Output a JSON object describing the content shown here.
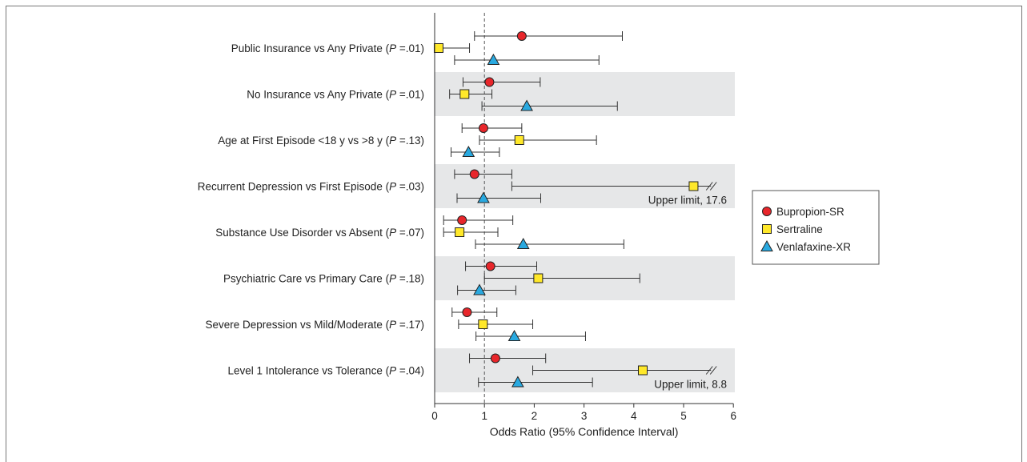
{
  "chart_data": {
    "type": "forest",
    "xlabel": "Odds Ratio (95% Confidence Interval)",
    "xlim": [
      0,
      6
    ],
    "xticks": [
      0,
      1,
      2,
      3,
      4,
      5,
      6
    ],
    "reference_line": 1,
    "legend": {
      "placement": "right",
      "entries": [
        {
          "name": "Bupropion-SR",
          "marker": "circle",
          "color": "#e8262b"
        },
        {
          "name": "Sertraline",
          "marker": "square",
          "color": "#ffe82a"
        },
        {
          "name": "Venlafaxine-XR",
          "marker": "triangle",
          "color": "#29a9e0"
        }
      ]
    },
    "rows": [
      {
        "label": "Public Insurance vs Any Private (",
        "p": "P",
        "p_value": " =.01)",
        "shaded": false,
        "estimates": [
          {
            "series": "Bupropion-SR",
            "or": 1.75,
            "lo": 0.8,
            "hi": 3.77
          },
          {
            "series": "Sertraline",
            "or": 0.08,
            "lo": 0.0,
            "hi": 0.7
          },
          {
            "series": "Venlafaxine-XR",
            "or": 1.18,
            "lo": 0.4,
            "hi": 3.3
          }
        ]
      },
      {
        "label": "No Insurance vs Any Private (",
        "p": "P",
        "p_value": " =.01)",
        "shaded": true,
        "estimates": [
          {
            "series": "Bupropion-SR",
            "or": 1.1,
            "lo": 0.57,
            "hi": 2.12
          },
          {
            "series": "Sertraline",
            "or": 0.6,
            "lo": 0.3,
            "hi": 1.15
          },
          {
            "series": "Venlafaxine-XR",
            "or": 1.85,
            "lo": 0.95,
            "hi": 3.67
          }
        ]
      },
      {
        "label": "Age at First Episode <18 y vs >8 y (",
        "p": "P",
        "p_value": " =.13)",
        "shaded": false,
        "estimates": [
          {
            "series": "Bupropion-SR",
            "or": 0.98,
            "lo": 0.55,
            "hi": 1.75
          },
          {
            "series": "Sertraline",
            "or": 1.7,
            "lo": 0.9,
            "hi": 3.25
          },
          {
            "series": "Venlafaxine-XR",
            "or": 0.68,
            "lo": 0.33,
            "hi": 1.3
          }
        ]
      },
      {
        "label": "Recurrent Depression vs First Episode (",
        "p": "P",
        "p_value": " =.03)",
        "shaded": true,
        "note": "Upper limit, 17.6",
        "estimates": [
          {
            "series": "Bupropion-SR",
            "or": 0.8,
            "lo": 0.4,
            "hi": 1.55
          },
          {
            "series": "Sertraline",
            "or": 5.2,
            "lo": 1.55,
            "hi": 17.6,
            "truncated": true
          },
          {
            "series": "Venlafaxine-XR",
            "or": 0.98,
            "lo": 0.45,
            "hi": 2.13
          }
        ]
      },
      {
        "label": "Substance Use Disorder vs Absent  (",
        "p": "P",
        "p_value": " =.07)",
        "shaded": false,
        "estimates": [
          {
            "series": "Bupropion-SR",
            "or": 0.55,
            "lo": 0.18,
            "hi": 1.57
          },
          {
            "series": "Sertraline",
            "or": 0.5,
            "lo": 0.18,
            "hi": 1.27
          },
          {
            "series": "Venlafaxine-XR",
            "or": 1.78,
            "lo": 0.82,
            "hi": 3.8
          }
        ]
      },
      {
        "label": "Psychiatric Care vs Primary Care (",
        "p": "P",
        "p_value": " =.18)",
        "shaded": true,
        "estimates": [
          {
            "series": "Bupropion-SR",
            "or": 1.12,
            "lo": 0.62,
            "hi": 2.05
          },
          {
            "series": "Sertraline",
            "or": 2.08,
            "lo": 1.0,
            "hi": 4.12
          },
          {
            "series": "Venlafaxine-XR",
            "or": 0.9,
            "lo": 0.46,
            "hi": 1.63
          }
        ]
      },
      {
        "label": "Severe Depression vs Mild/Moderate (",
        "p": "P",
        "p_value": " =.17)",
        "shaded": false,
        "estimates": [
          {
            "series": "Bupropion-SR",
            "or": 0.65,
            "lo": 0.35,
            "hi": 1.25
          },
          {
            "series": "Sertraline",
            "or": 0.97,
            "lo": 0.48,
            "hi": 1.97
          },
          {
            "series": "Venlafaxine-XR",
            "or": 1.6,
            "lo": 0.83,
            "hi": 3.03
          }
        ]
      },
      {
        "label": "Level 1 Intolerance vs Tolerance (",
        "p": "P",
        "p_value": " =.04)",
        "shaded": true,
        "note": "Upper limit, 8.8",
        "estimates": [
          {
            "series": "Bupropion-SR",
            "or": 1.22,
            "lo": 0.7,
            "hi": 2.23
          },
          {
            "series": "Sertraline",
            "or": 4.18,
            "lo": 1.97,
            "hi": 8.8,
            "truncated": true
          },
          {
            "series": "Venlafaxine-XR",
            "or": 1.67,
            "lo": 0.88,
            "hi": 3.17
          }
        ]
      }
    ]
  }
}
